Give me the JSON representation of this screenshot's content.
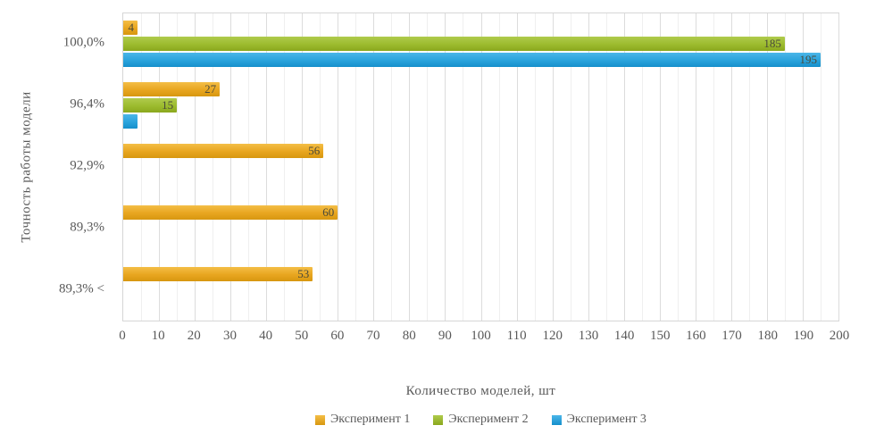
{
  "chart_data": {
    "type": "bar",
    "orientation": "horizontal",
    "title": "",
    "xlabel": "Количество моделей, шт",
    "ylabel": "Точность работы модели",
    "categories": [
      "100,0%",
      "96,4%",
      "92,9%",
      "89,3%",
      "89,3% <"
    ],
    "series": [
      {
        "name": "Эксперимент 1",
        "color": "#E8A51F",
        "color_light": "#F4BE47",
        "color_dark": "#D79710",
        "values": [
          4,
          27,
          56,
          60,
          53
        ],
        "labels": [
          "4",
          "27",
          "56",
          "60",
          "53"
        ]
      },
      {
        "name": "Эксперимент 2",
        "color": "#9CBB2E",
        "color_light": "#AFCB4C",
        "color_dark": "#8AA71D",
        "values": [
          185,
          15,
          0,
          0,
          0
        ],
        "labels": [
          "185",
          "15",
          "",
          "",
          ""
        ]
      },
      {
        "name": "Эксперимент 3",
        "color": "#2AA3DC",
        "color_light": "#4BB6E9",
        "color_dark": "#158FCB",
        "values": [
          195,
          4,
          0,
          0,
          0
        ],
        "labels": [
          "195",
          "",
          "",
          "",
          ""
        ]
      }
    ],
    "xlim": [
      0,
      200
    ],
    "x_tick_step": 10,
    "minor_grid_step": 5,
    "grid": true,
    "legend_position": "bottom"
  }
}
